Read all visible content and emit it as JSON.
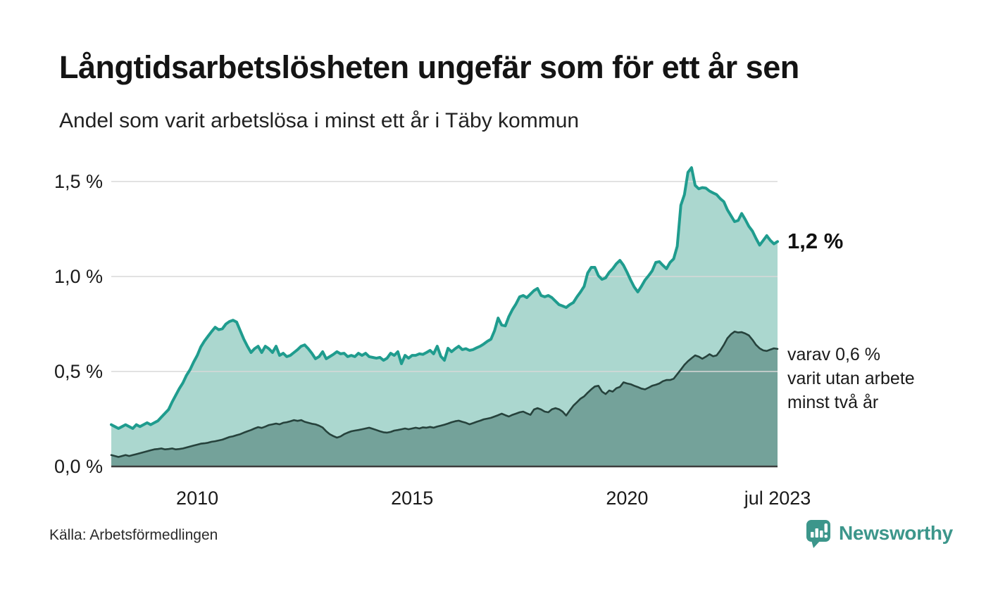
{
  "header": {
    "title": "Långtidsarbetslösheten ungefär som för ett år sen",
    "subtitle": "Andel som varit arbetslösa i minst ett år i Täby kommun"
  },
  "footer": {
    "source": "Källa: Arbetsförmedlingen",
    "brand_name": "Newsworthy"
  },
  "colors": {
    "teal_line": "#1f9c8e",
    "teal_fill": "#abd7cf",
    "dark_line": "#26423c",
    "dark_fill": "#74a29a",
    "grid": "#d8d8d8",
    "axis": "#3d3d3d",
    "brand": "#3c968b",
    "text": "#1a1a1a"
  },
  "chart_data": {
    "type": "area",
    "title": "Långtidsarbetslösheten ungefär som för ett år sen",
    "subtitle": "Andel som varit arbetslösa i minst ett år i Täby kommun",
    "unit": "%",
    "x_start": "2008-01",
    "x_end": "2023-07",
    "frequency": "monthly",
    "grid": true,
    "ylim": [
      0,
      1.65
    ],
    "y_ticks": [
      {
        "label": "0,0 %",
        "value": 0.0
      },
      {
        "label": "0,5 %",
        "value": 0.5
      },
      {
        "label": "1,0 %",
        "value": 1.0
      },
      {
        "label": "1,5 %",
        "value": 1.5
      }
    ],
    "x_ticks": [
      {
        "label": "2010",
        "month_index": 24
      },
      {
        "label": "2015",
        "month_index": 84
      },
      {
        "label": "2020",
        "month_index": 144
      },
      {
        "label": "jul 2023",
        "month_index": 186
      }
    ],
    "series": [
      {
        "name": "Andel som varit arbetslösa minst ett år",
        "stroke": "#1f9c8e",
        "fill": "#abd7cf",
        "latest_value": "1,2 %",
        "values": [
          0.22,
          0.21,
          0.2,
          0.21,
          0.22,
          0.21,
          0.2,
          0.22,
          0.21,
          0.22,
          0.23,
          0.22,
          0.23,
          0.24,
          0.26,
          0.28,
          0.3,
          0.34,
          0.375,
          0.41,
          0.44,
          0.48,
          0.51,
          0.55,
          0.585,
          0.63,
          0.66,
          0.685,
          0.71,
          0.733,
          0.72,
          0.725,
          0.75,
          0.763,
          0.77,
          0.76,
          0.715,
          0.67,
          0.633,
          0.6,
          0.62,
          0.633,
          0.6,
          0.633,
          0.62,
          0.6,
          0.633,
          0.585,
          0.596,
          0.578,
          0.585,
          0.6,
          0.615,
          0.633,
          0.64,
          0.62,
          0.596,
          0.567,
          0.578,
          0.604,
          0.567,
          0.578,
          0.59,
          0.604,
          0.593,
          0.596,
          0.578,
          0.585,
          0.578,
          0.596,
          0.585,
          0.596,
          0.578,
          0.574,
          0.57,
          0.574,
          0.559,
          0.57,
          0.596,
          0.585,
          0.604,
          0.541,
          0.585,
          0.57,
          0.585,
          0.585,
          0.593,
          0.59,
          0.6,
          0.611,
          0.593,
          0.633,
          0.58,
          0.559,
          0.622,
          0.604,
          0.62,
          0.633,
          0.615,
          0.62,
          0.611,
          0.615,
          0.625,
          0.633,
          0.645,
          0.659,
          0.67,
          0.715,
          0.781,
          0.744,
          0.74,
          0.789,
          0.826,
          0.856,
          0.893,
          0.9,
          0.889,
          0.907,
          0.926,
          0.937,
          0.9,
          0.893,
          0.9,
          0.889,
          0.87,
          0.852,
          0.845,
          0.837,
          0.852,
          0.863,
          0.893,
          0.919,
          0.948,
          1.018,
          1.048,
          1.048,
          1.004,
          0.985,
          0.993,
          1.022,
          1.041,
          1.067,
          1.085,
          1.059,
          1.022,
          0.981,
          0.944,
          0.919,
          0.948,
          0.981,
          1.004,
          1.03,
          1.074,
          1.078,
          1.059,
          1.041,
          1.074,
          1.093,
          1.159,
          1.375,
          1.431,
          1.548,
          1.573,
          1.48,
          1.462,
          1.468,
          1.465,
          1.45,
          1.44,
          1.431,
          1.41,
          1.394,
          1.351,
          1.32,
          1.289,
          1.295,
          1.332,
          1.3,
          1.264,
          1.239,
          1.2,
          1.165,
          1.19,
          1.215,
          1.19,
          1.172,
          1.184
        ]
      },
      {
        "name": "varav utan arbete minst två år",
        "stroke": "#26423c",
        "fill": "#74a29a",
        "latest_value": "0,6 %",
        "values": [
          0.06,
          0.055,
          0.05,
          0.055,
          0.06,
          0.055,
          0.06,
          0.065,
          0.07,
          0.075,
          0.08,
          0.085,
          0.09,
          0.092,
          0.095,
          0.09,
          0.092,
          0.095,
          0.09,
          0.092,
          0.095,
          0.1,
          0.105,
          0.11,
          0.115,
          0.12,
          0.122,
          0.125,
          0.13,
          0.133,
          0.137,
          0.141,
          0.148,
          0.155,
          0.159,
          0.165,
          0.17,
          0.178,
          0.185,
          0.192,
          0.2,
          0.207,
          0.203,
          0.21,
          0.218,
          0.222,
          0.226,
          0.222,
          0.23,
          0.233,
          0.238,
          0.244,
          0.24,
          0.244,
          0.235,
          0.23,
          0.225,
          0.222,
          0.215,
          0.205,
          0.185,
          0.17,
          0.16,
          0.152,
          0.158,
          0.17,
          0.178,
          0.185,
          0.189,
          0.192,
          0.196,
          0.2,
          0.204,
          0.198,
          0.192,
          0.185,
          0.18,
          0.178,
          0.182,
          0.189,
          0.192,
          0.196,
          0.2,
          0.196,
          0.2,
          0.204,
          0.2,
          0.206,
          0.204,
          0.208,
          0.204,
          0.21,
          0.215,
          0.22,
          0.226,
          0.233,
          0.238,
          0.241,
          0.235,
          0.23,
          0.222,
          0.228,
          0.235,
          0.241,
          0.248,
          0.252,
          0.256,
          0.263,
          0.27,
          0.278,
          0.27,
          0.263,
          0.272,
          0.278,
          0.285,
          0.289,
          0.28,
          0.272,
          0.3,
          0.307,
          0.3,
          0.289,
          0.285,
          0.301,
          0.307,
          0.301,
          0.289,
          0.268,
          0.295,
          0.32,
          0.338,
          0.357,
          0.369,
          0.388,
          0.406,
          0.421,
          0.425,
          0.394,
          0.381,
          0.4,
          0.394,
          0.412,
          0.419,
          0.443,
          0.437,
          0.433,
          0.425,
          0.418,
          0.41,
          0.406,
          0.415,
          0.425,
          0.43,
          0.437,
          0.449,
          0.455,
          0.455,
          0.462,
          0.486,
          0.51,
          0.535,
          0.554,
          0.57,
          0.585,
          0.578,
          0.567,
          0.578,
          0.591,
          0.58,
          0.585,
          0.61,
          0.64,
          0.675,
          0.696,
          0.71,
          0.705,
          0.707,
          0.7,
          0.69,
          0.667,
          0.64,
          0.622,
          0.611,
          0.608,
          0.615,
          0.622,
          0.619
        ]
      }
    ],
    "annotations": [
      {
        "id": "latest-total",
        "text": "1,2 %"
      },
      {
        "id": "two-years",
        "line1": "varav 0,6 %",
        "line2": "varit utan arbete",
        "line3": "minst två år"
      }
    ]
  }
}
